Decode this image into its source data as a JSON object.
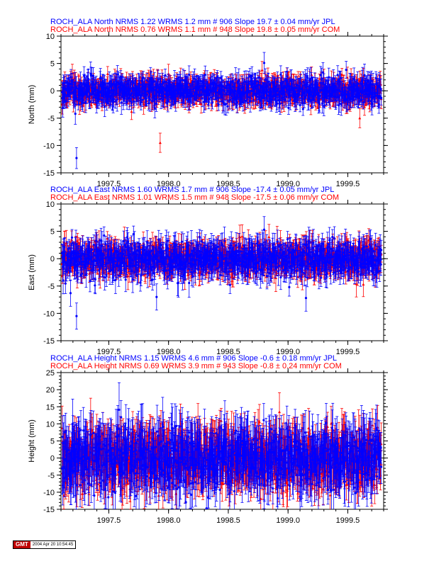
{
  "chart_data": [
    {
      "type": "scatter",
      "ylabel": "North (mm)",
      "xlim": [
        1997.1,
        1999.8
      ],
      "ylim": [
        -15,
        10
      ],
      "xticks": [
        "1997.5",
        "1998.0",
        "1998.5",
        "1999.0",
        "1999.5"
      ],
      "xtick_values": [
        1997.5,
        1998.0,
        1998.5,
        1999.0,
        1999.5
      ],
      "yticks": [
        "-15",
        "-10",
        "-5",
        "0",
        "5",
        "10"
      ],
      "ytick_values": [
        -15,
        -10,
        -5,
        0,
        5,
        10
      ],
      "title_lines": [
        "ROCH_ALA North NRMS 1.22 WRMS  1.2 mm # 906 Slope   19.7 ±  0.04 mm/yr JPL",
        "ROCH_ALA North NRMS 0.76 WRMS  1.1 mm # 948 Slope   19.8 ±  0.05 mm/yr COM"
      ],
      "series": [
        {
          "color": "#0000ff",
          "marker": "circle",
          "typical_sigma": 1.2,
          "points": [
            [
              1997.12,
              0.5
            ],
            [
              1997.2,
              -0.3
            ],
            [
              1997.22,
              -4.2
            ],
            [
              1997.23,
              -12.3
            ],
            [
              1997.3,
              1.1
            ],
            [
              1997.45,
              -0.8
            ],
            [
              1997.6,
              0.4
            ],
            [
              1997.75,
              1.3
            ],
            [
              1997.9,
              -0.6
            ],
            [
              1998.05,
              1.8
            ],
            [
              1998.15,
              -1.1
            ],
            [
              1998.3,
              0.9
            ],
            [
              1998.45,
              0.1
            ],
            [
              1998.6,
              -0.5
            ],
            [
              1998.8,
              5.1
            ],
            [
              1998.9,
              -0.7
            ],
            [
              1999.1,
              0.4
            ],
            [
              1999.3,
              1.2
            ],
            [
              1999.45,
              -0.9
            ],
            [
              1999.55,
              0.3
            ],
            [
              1999.7,
              -0.6
            ]
          ]
        },
        {
          "color": "#ff0000",
          "marker": "triangle",
          "typical_sigma": 1.1,
          "points": [
            [
              1997.11,
              -2.5
            ],
            [
              1997.25,
              1.0
            ],
            [
              1997.4,
              -1.2
            ],
            [
              1997.55,
              2.2
            ],
            [
              1997.7,
              -1.4
            ],
            [
              1997.93,
              -9.5
            ],
            [
              1998.0,
              3.1
            ],
            [
              1998.2,
              -0.9
            ],
            [
              1998.35,
              1.5
            ],
            [
              1998.5,
              -1.8
            ],
            [
              1998.7,
              0.8
            ],
            [
              1999.0,
              1.6
            ],
            [
              1999.2,
              -1.1
            ],
            [
              1999.52,
              -2.0
            ],
            [
              1999.6,
              -5.0
            ],
            [
              1999.75,
              1.0
            ]
          ]
        }
      ]
    },
    {
      "type": "scatter",
      "ylabel": "East (mm)",
      "xlim": [
        1997.1,
        1999.8
      ],
      "ylim": [
        -15,
        10
      ],
      "xticks": [
        "1997.5",
        "1998.0",
        "1998.5",
        "1999.0",
        "1999.5"
      ],
      "xtick_values": [
        1997.5,
        1998.0,
        1998.5,
        1999.0,
        1999.5
      ],
      "yticks": [
        "-15",
        "-10",
        "-5",
        "0",
        "5",
        "10"
      ],
      "ytick_values": [
        -15,
        -10,
        -5,
        0,
        5,
        10
      ],
      "title_lines": [
        "ROCH_ALA East NRMS 1.60 WRMS  1.7 mm # 906 Slope  -17.4 ±  0.05 mm/yr JPL",
        "ROCH_ALA East NRMS 1.01 WRMS  1.5 mm # 948 Slope  -17.5 ±  0.06 mm/yr COM"
      ],
      "series": [
        {
          "color": "#0000ff",
          "marker": "circle",
          "typical_sigma": 1.5,
          "points": [
            [
              1997.12,
              1.2
            ],
            [
              1997.18,
              -6.3
            ],
            [
              1997.23,
              -10.5
            ],
            [
              1997.3,
              0.8
            ],
            [
              1997.45,
              -1.5
            ],
            [
              1997.6,
              1.0
            ],
            [
              1997.7,
              -3.8
            ],
            [
              1997.85,
              0.6
            ],
            [
              1997.9,
              -7.0
            ],
            [
              1998.05,
              2.3
            ],
            [
              1998.2,
              -1.0
            ],
            [
              1998.35,
              0.5
            ],
            [
              1998.5,
              -2.4
            ],
            [
              1998.65,
              1.1
            ],
            [
              1998.8,
              5.3
            ],
            [
              1998.95,
              -0.8
            ],
            [
              1999.1,
              0.6
            ],
            [
              1999.15,
              -7.2
            ],
            [
              1999.35,
              1.4
            ],
            [
              1999.5,
              -0.7
            ],
            [
              1999.7,
              1.8
            ]
          ]
        },
        {
          "color": "#ff0000",
          "marker": "triangle",
          "typical_sigma": 1.4,
          "points": [
            [
              1997.11,
              -0.9
            ],
            [
              1997.28,
              2.0
            ],
            [
              1997.42,
              -1.4
            ],
            [
              1997.58,
              1.3
            ],
            [
              1997.75,
              -2.2
            ],
            [
              1997.95,
              0.8
            ],
            [
              1998.1,
              -1.9
            ],
            [
              1998.4,
              1.7
            ],
            [
              1998.55,
              -1.2
            ],
            [
              1998.75,
              0.4
            ],
            [
              1999.05,
              -1.5
            ],
            [
              1999.3,
              0.9
            ],
            [
              1999.55,
              1.1
            ],
            [
              1999.63,
              -4.7
            ],
            [
              1999.76,
              -0.6
            ]
          ]
        }
      ]
    },
    {
      "type": "scatter",
      "ylabel": "Height (mm)",
      "xlim": [
        1997.1,
        1999.8
      ],
      "ylim": [
        -15,
        25
      ],
      "xticks": [
        "1997.5",
        "1998.0",
        "1998.5",
        "1999.0",
        "1999.5"
      ],
      "xtick_values": [
        1997.5,
        1998.0,
        1998.5,
        1999.0,
        1999.5
      ],
      "yticks": [
        "-15",
        "-10",
        "-5",
        "0",
        "5",
        "10",
        "15",
        "20",
        "25"
      ],
      "ytick_values": [
        -15,
        -10,
        -5,
        0,
        5,
        10,
        15,
        20,
        25
      ],
      "title_lines": [
        "ROCH_ALA Height NRMS 1.15 WRMS  4.6 mm # 906 Slope   -0.6 ±  0.18 mm/yr JPL",
        "ROCH_ALA Height NRMS 0.69 WRMS  3.9 mm # 943 Slope   -0.8 ±  0.24 mm/yr COM"
      ],
      "series": [
        {
          "color": "#0000ff",
          "marker": "circle",
          "typical_sigma": 4.5,
          "points": [
            [
              1997.12,
              -3.0
            ],
            [
              1997.2,
              5.2
            ],
            [
              1997.3,
              -6.5
            ],
            [
              1997.45,
              2.8
            ],
            [
              1997.6,
              -4.0
            ],
            [
              1997.75,
              6.5
            ],
            [
              1997.9,
              -5.8
            ],
            [
              1998.05,
              3.4
            ],
            [
              1998.2,
              -7.2
            ],
            [
              1998.35,
              1.5
            ],
            [
              1998.5,
              -3.6
            ],
            [
              1998.65,
              4.2
            ],
            [
              1998.8,
              -5.1
            ],
            [
              1998.95,
              2.2
            ],
            [
              1999.1,
              -2.8
            ],
            [
              1999.25,
              5.5
            ],
            [
              1999.4,
              -4.4
            ],
            [
              1999.55,
              6.0
            ],
            [
              1999.7,
              -3.2
            ]
          ]
        },
        {
          "color": "#ff0000",
          "marker": "triangle",
          "typical_sigma": 4.0,
          "points": [
            [
              1997.11,
              8.8
            ],
            [
              1997.25,
              -2.1
            ],
            [
              1997.4,
              6.4
            ],
            [
              1997.55,
              -3.3
            ],
            [
              1997.7,
              7.2
            ],
            [
              1997.85,
              -1.6
            ],
            [
              1998.1,
              9.4
            ],
            [
              1998.25,
              -2.9
            ],
            [
              1998.4,
              6.1
            ],
            [
              1998.6,
              -4.5
            ],
            [
              1998.75,
              7.8
            ],
            [
              1998.9,
              -1.0
            ],
            [
              1999.05,
              5.6
            ],
            [
              1999.2,
              -3.0
            ],
            [
              1999.45,
              8.1
            ],
            [
              1999.6,
              -2.4
            ],
            [
              1999.75,
              9.0
            ]
          ]
        }
      ]
    }
  ],
  "footer": {
    "logo": "GMT",
    "timestamp": "2004 Apr 20 10:54:45"
  }
}
